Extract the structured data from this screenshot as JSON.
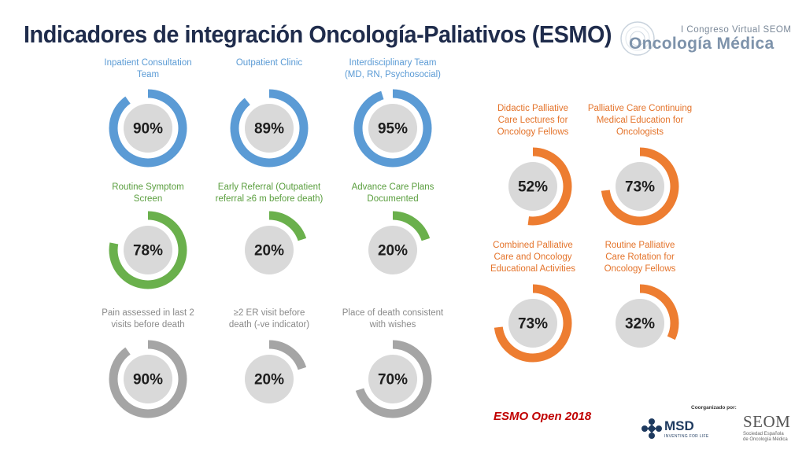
{
  "header": {
    "title": "Indicadores de integración Oncología-Paliativos (ESMO)",
    "logo_eyebrow": "I Congreso Virtual SEOM",
    "logo_brand": "Oncología Médica"
  },
  "colors": {
    "blue": "#5b9bd5",
    "green": "#6ab04c",
    "gray": "#a5a5a5",
    "orange": "#ed7d31",
    "center": "#d9d9d9",
    "title_text": "#1f2c4c",
    "citation_text": "#c00000"
  },
  "chart_data": {
    "type": "donut-grid",
    "unit": "%",
    "series": [
      {
        "label": "Inpatient Consultation\nTeam",
        "value": 90,
        "color": "blue"
      },
      {
        "label": "Outpatient Clinic",
        "value": 89,
        "color": "blue"
      },
      {
        "label": "Interdisciplinary Team\n(MD, RN, Psychosocial)",
        "value": 95,
        "color": "blue"
      },
      {
        "label": "Routine Symptom\nScreen",
        "value": 78,
        "color": "green"
      },
      {
        "label": "Early Referral (Outpatient\nreferral ≥6 m before death)",
        "value": 20,
        "color": "green"
      },
      {
        "label": "Advance Care Plans\nDocumented",
        "value": 20,
        "color": "green"
      },
      {
        "label": "Pain assessed in last 2\nvisits before death",
        "value": 90,
        "color": "gray"
      },
      {
        "label": "≥2 ER visit before\ndeath (-ve indicator)",
        "value": 20,
        "color": "gray"
      },
      {
        "label": "Place of death consistent\nwith wishes",
        "value": 70,
        "color": "gray"
      },
      {
        "label": "Didactic Palliative\nCare  Lectures for\nOncology Fellows",
        "value": 52,
        "color": "orange"
      },
      {
        "label": "Palliative Care Continuing\nMedical Education for\nOncologists",
        "value": 73,
        "color": "orange"
      },
      {
        "label": "Combined Palliative\nCare and Oncology\nEducational Activities",
        "value": 73,
        "color": "orange"
      },
      {
        "label": "Routine Palliative\nCare Rotation for\nOncology Fellows",
        "value": 32,
        "color": "orange"
      }
    ]
  },
  "footer": {
    "citation": "ESMO Open 2018",
    "organized_by": "Coorganizado por:",
    "sponsor_name": "MSD",
    "sponsor_tagline": "INVENTING FOR LIFE",
    "society_name": "SEOM",
    "society_full": "Sociedad Española\nde Oncología Médica"
  }
}
